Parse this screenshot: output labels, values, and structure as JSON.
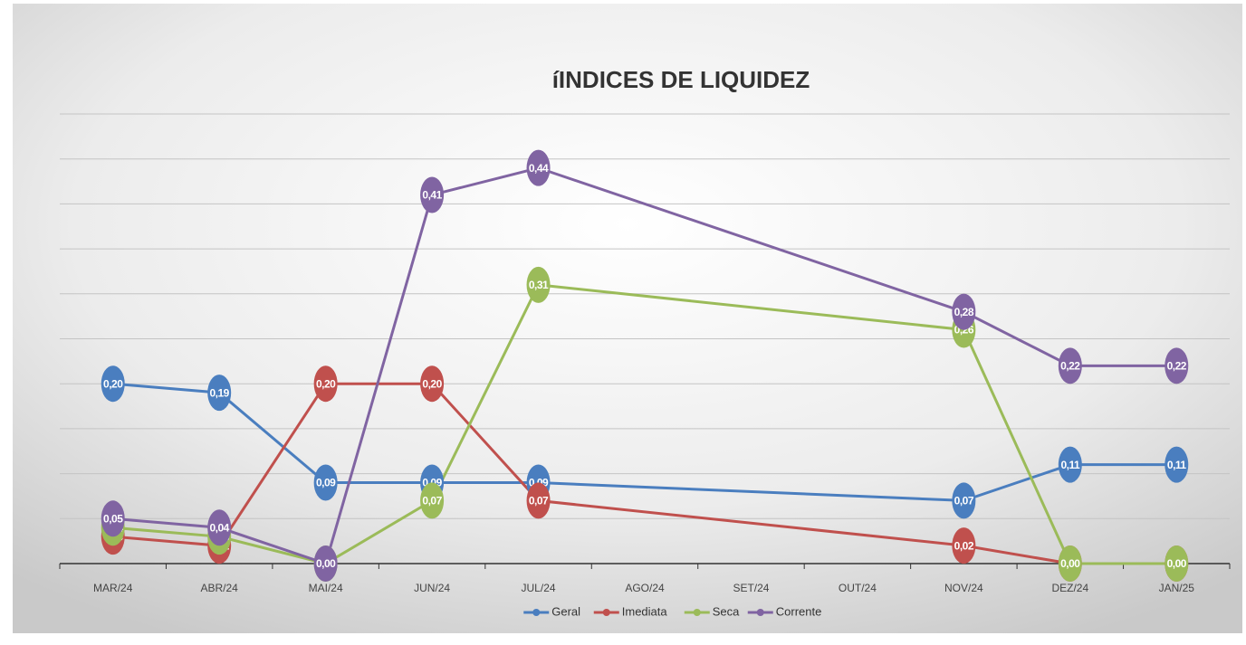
{
  "chart_data": {
    "type": "line",
    "title": "íINDICES DE LIQUIDEZ",
    "categories": [
      "MAR/24",
      "ABR/24",
      "MAI/24",
      "JUN/24",
      "JUL/24",
      "AGO/24",
      "SET/24",
      "OUT/24",
      "NOV/24",
      "DEZ/24",
      "JAN/25"
    ],
    "series": [
      {
        "name": "Geral",
        "color": "#4a7ebf",
        "values": [
          0.2,
          0.19,
          0.09,
          0.09,
          0.09,
          null,
          null,
          null,
          0.07,
          0.11,
          0.11
        ],
        "value_labels": [
          "0,20",
          "0,19",
          "0,09",
          "0,09",
          "0,09",
          null,
          null,
          null,
          "0,07",
          "0,11",
          "0,11"
        ]
      },
      {
        "name": "Imediata",
        "color": "#c0504d",
        "values": [
          0.03,
          0.02,
          0.2,
          0.2,
          0.07,
          null,
          null,
          null,
          0.02,
          0.0,
          0.0
        ],
        "value_labels": [
          "0,03",
          "0,02",
          "0,20",
          "0,20",
          "0,07",
          null,
          null,
          null,
          "0,02",
          "0,00",
          "0,00"
        ]
      },
      {
        "name": "Seca",
        "color": "#9bbb59",
        "values": [
          0.04,
          0.03,
          0.0,
          0.07,
          0.31,
          null,
          null,
          null,
          0.26,
          0.0,
          0.0
        ],
        "value_labels": [
          "0,04",
          "0,03",
          "0,00",
          "0,07",
          "0,31",
          null,
          null,
          null,
          "0,26",
          "0,00",
          "0,00"
        ]
      },
      {
        "name": "Corrente",
        "color": "#8064a2",
        "values": [
          0.05,
          0.04,
          0.0,
          0.41,
          0.44,
          null,
          null,
          null,
          0.28,
          0.22,
          0.22
        ],
        "value_labels": [
          "0,05",
          "0,04",
          "0,00",
          "0,41",
          "0,44",
          null,
          null,
          null,
          "0,28",
          "0,22",
          "0,22"
        ]
      }
    ],
    "ylim": [
      0,
      0.5
    ],
    "yticks": [
      0,
      0.05,
      0.1,
      0.15,
      0.2,
      0.25,
      0.3,
      0.35,
      0.4,
      0.45,
      0.5
    ],
    "show_ytick_labels": false,
    "grid": true,
    "span_gaps": true,
    "legend": "bottom"
  }
}
